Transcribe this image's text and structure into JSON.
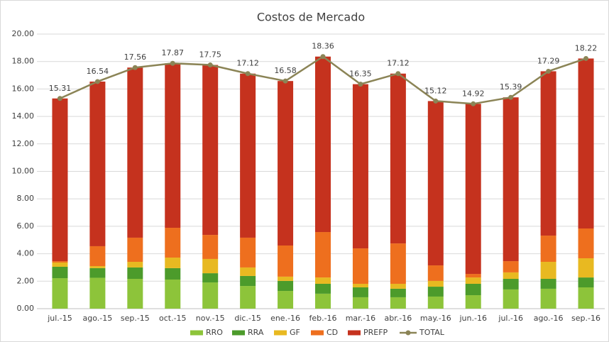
{
  "chart_data": {
    "type": "stacked_bar_line",
    "title": "Costos de Mercado",
    "categories": [
      "jul.-15",
      "ago.-15",
      "sep.-15",
      "oct.-15",
      "nov.-15",
      "dic.-15",
      "ene.-16",
      "feb.-16",
      "mar.-16",
      "abr.-16",
      "may.-16",
      "jun.-16",
      "jul.-16",
      "ago.-16",
      "sep.-16"
    ],
    "series": [
      {
        "name": "RRO",
        "color": "#8dc43a",
        "values": [
          2.22,
          2.25,
          2.17,
          2.12,
          1.91,
          1.65,
          1.29,
          1.09,
          0.83,
          0.83,
          0.88,
          0.98,
          1.4,
          1.45,
          1.55
        ]
      },
      {
        "name": "RRA",
        "color": "#4c9b2b",
        "values": [
          0.83,
          0.7,
          0.83,
          0.83,
          0.67,
          0.73,
          0.73,
          0.72,
          0.72,
          0.62,
          0.72,
          0.83,
          0.77,
          0.72,
          0.72
        ]
      },
      {
        "name": "GF",
        "color": "#e8b921",
        "values": [
          0.31,
          0.15,
          0.41,
          0.77,
          1.04,
          0.62,
          0.31,
          0.46,
          0.26,
          0.36,
          0.42,
          0.46,
          0.47,
          1.24,
          1.4
        ]
      },
      {
        "name": "CD",
        "color": "#ee6f1e",
        "values": [
          0.1,
          1.45,
          1.76,
          2.17,
          1.75,
          2.17,
          2.27,
          3.31,
          2.58,
          2.94,
          1.13,
          0.26,
          0.82,
          1.91,
          2.17
        ]
      },
      {
        "name": "PREFP",
        "color": "#c5321e",
        "values": [
          11.85,
          11.99,
          12.39,
          11.98,
          12.38,
          11.95,
          11.98,
          12.78,
          11.96,
          12.37,
          11.97,
          12.39,
          11.93,
          11.97,
          12.38
        ]
      },
      {
        "name": "TOTAL",
        "color": "#8b8456",
        "line": true,
        "values": [
          15.31,
          16.54,
          17.56,
          17.87,
          17.75,
          17.12,
          16.58,
          18.36,
          16.35,
          17.12,
          15.12,
          14.92,
          15.39,
          17.29,
          18.22
        ]
      }
    ],
    "ylim": [
      0,
      20
    ],
    "yticks": [
      {
        "value": 0,
        "label": "0.00"
      },
      {
        "value": 2,
        "label": "2.00"
      },
      {
        "value": 4,
        "label": "4.00"
      },
      {
        "value": 6,
        "label": "6.00"
      },
      {
        "value": 8,
        "label": "8.00"
      },
      {
        "value": 10,
        "label": "10.00"
      },
      {
        "value": 12,
        "label": "12.00"
      },
      {
        "value": 14,
        "label": "14.00"
      },
      {
        "value": 16,
        "label": "16.00"
      },
      {
        "value": 18,
        "label": "18.00"
      },
      {
        "value": 20,
        "label": "20.00"
      }
    ],
    "grid": true,
    "legend": "bottom"
  }
}
